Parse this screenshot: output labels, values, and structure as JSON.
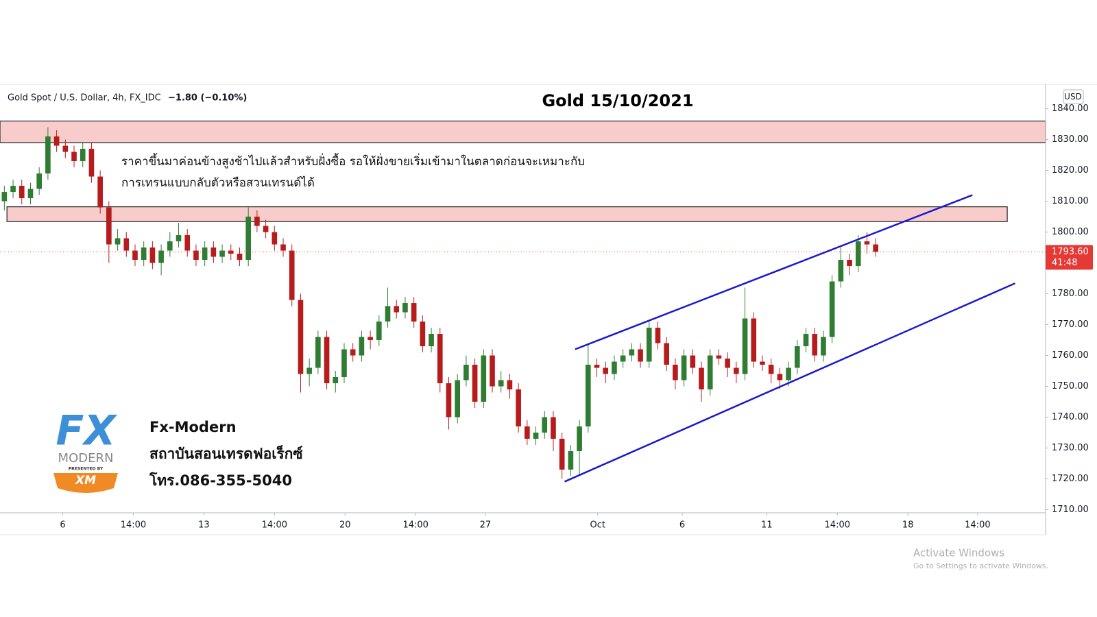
{
  "chart_data": {
    "type": "candlestick",
    "header": "Gold Spot / U.S. Dollar, 4h, FX_IDC",
    "change": "−1.80 (−0.10%)",
    "title": "Gold 15/10/2021",
    "annotation": [
      "ราคาขึ้นมาค่อนข้างสูงช้าไปแล้วสำหรับฝั่งซื้อ รอให้ฝั่งขายเริ่มเข้ามาในตลาดก่อนจะเหมาะกับ",
      "การเทรนแบบกลับตัวหรือสวนเทรนด์ได้"
    ],
    "y_unit": "USD",
    "up_color": "#2e7d32",
    "down_color": "#b71c1c",
    "xlim": [
      -0.5,
      119.5
    ],
    "ylim": [
      1709,
      1847.9
    ],
    "yticks": [
      {
        "value": 1710,
        "label": "1710.00"
      },
      {
        "value": 1720,
        "label": "1720.00"
      },
      {
        "value": 1730,
        "label": "1730.00"
      },
      {
        "value": 1740,
        "label": "1740.00"
      },
      {
        "value": 1750,
        "label": "1750.00"
      },
      {
        "value": 1760,
        "label": "1760.00"
      },
      {
        "value": 1770,
        "label": "1770.00"
      },
      {
        "value": 1780,
        "label": "1780.00"
      },
      {
        "value": 1790,
        "label": "1790.00"
      },
      {
        "value": 1800,
        "label": "1800.00"
      },
      {
        "value": 1810,
        "label": "1810.00"
      },
      {
        "value": 1820,
        "label": "1820.00"
      },
      {
        "value": 1830,
        "label": "1830.00"
      },
      {
        "value": 1840,
        "label": "1840.00"
      }
    ],
    "xticks": [
      {
        "value": 6.7,
        "label": "6"
      },
      {
        "value": 14.8,
        "label": "14:00"
      },
      {
        "value": 22.9,
        "label": "13"
      },
      {
        "value": 31,
        "label": "14:00"
      },
      {
        "value": 39.1,
        "label": "20"
      },
      {
        "value": 47.2,
        "label": "14:00"
      },
      {
        "value": 55.2,
        "label": "27"
      },
      {
        "value": 68.1,
        "label": "Oct"
      },
      {
        "value": 77.8,
        "label": "6"
      },
      {
        "value": 87.5,
        "label": "11"
      },
      {
        "value": 95.6,
        "label": "14:00"
      },
      {
        "value": 103.7,
        "label": "18"
      },
      {
        "value": 111.7,
        "label": "14:00"
      }
    ],
    "open": [
      1810,
      1813,
      1815,
      1811,
      1814,
      1819,
      1831,
      1828,
      1826,
      1823,
      1827,
      1818,
      1808,
      1796,
      1798,
      1794,
      1791,
      1795,
      1790,
      1794,
      1797,
      1799,
      1794,
      1791,
      1795,
      1792,
      1794,
      1793,
      1791,
      1805,
      1802,
      1800,
      1796,
      1794,
      1778,
      1754,
      1756,
      1766,
      1751,
      1753,
      1762,
      1760,
      1766,
      1765,
      1771,
      1776,
      1774,
      1777,
      1771,
      1763,
      1767,
      1751,
      1740,
      1752,
      1757,
      1745,
      1760,
      1750,
      1752,
      1749,
      1737,
      1733,
      1735,
      1740,
      1733,
      1723,
      1729,
      1737,
      1757,
      1756,
      1754,
      1758,
      1760,
      1762,
      1758,
      1769,
      1764,
      1757,
      1752,
      1760,
      1756,
      1749,
      1760,
      1759,
      1756,
      1754,
      1772,
      1758,
      1757,
      1754,
      1752,
      1756,
      1763,
      1767,
      1760,
      1766,
      1784,
      1791,
      1789,
      1797,
      1796
    ],
    "high": [
      1815,
      1817,
      1817,
      1816,
      1821,
      1834,
      1833,
      1830,
      1828,
      1829,
      1829,
      1820,
      1810,
      1801,
      1800,
      1796,
      1797,
      1797,
      1796,
      1800,
      1803,
      1801,
      1796,
      1797,
      1797,
      1796,
      1796,
      1795,
      1808,
      1807,
      1804,
      1802,
      1798,
      1796,
      1780,
      1759,
      1768,
      1768,
      1755,
      1764,
      1764,
      1768,
      1768,
      1773,
      1782,
      1778,
      1779,
      1779,
      1773,
      1769,
      1769,
      1753,
      1754,
      1760,
      1759,
      1762,
      1762,
      1755,
      1754,
      1751,
      1739,
      1737,
      1742,
      1742,
      1735,
      1731,
      1739,
      1764,
      1759,
      1758,
      1760,
      1762,
      1764,
      1764,
      1771,
      1771,
      1766,
      1759,
      1762,
      1762,
      1758,
      1762,
      1762,
      1761,
      1758,
      1782,
      1774,
      1760,
      1759,
      1756,
      1758,
      1765,
      1769,
      1769,
      1768,
      1786,
      1795,
      1793,
      1799,
      1800,
      1798
    ],
    "low": [
      1807,
      1811,
      1809,
      1809,
      1812,
      1817,
      1826,
      1824,
      1821,
      1821,
      1816,
      1806,
      1790,
      1794,
      1792,
      1789,
      1789,
      1788,
      1786,
      1792,
      1795,
      1792,
      1789,
      1789,
      1790,
      1790,
      1791,
      1789,
      1789,
      1800,
      1798,
      1794,
      1792,
      1776,
      1748,
      1750,
      1754,
      1749,
      1748,
      1751,
      1758,
      1758,
      1762,
      1763,
      1769,
      1772,
      1772,
      1769,
      1761,
      1761,
      1748,
      1736,
      1738,
      1750,
      1743,
      1743,
      1748,
      1748,
      1746,
      1735,
      1731,
      1731,
      1733,
      1729,
      1720,
      1721,
      1721,
      1735,
      1753,
      1751,
      1752,
      1756,
      1758,
      1756,
      1756,
      1762,
      1755,
      1749,
      1750,
      1754,
      1745,
      1747,
      1757,
      1753,
      1751,
      1752,
      1756,
      1755,
      1751,
      1749,
      1750,
      1754,
      1761,
      1758,
      1758,
      1764,
      1782,
      1786,
      1787,
      1793,
      1792
    ],
    "close": [
      1813,
      1815,
      1811,
      1814,
      1819,
      1831,
      1828,
      1826,
      1823,
      1827,
      1818,
      1808,
      1796,
      1798,
      1794,
      1791,
      1795,
      1790,
      1794,
      1797,
      1799,
      1794,
      1791,
      1795,
      1792,
      1794,
      1793,
      1791,
      1805,
      1802,
      1800,
      1796,
      1794,
      1778,
      1754,
      1756,
      1766,
      1751,
      1753,
      1762,
      1760,
      1766,
      1765,
      1771,
      1776,
      1774,
      1777,
      1771,
      1763,
      1767,
      1751,
      1740,
      1752,
      1757,
      1745,
      1760,
      1750,
      1752,
      1749,
      1737,
      1733,
      1735,
      1740,
      1733,
      1723,
      1729,
      1737,
      1757,
      1756,
      1754,
      1758,
      1760,
      1762,
      1758,
      1769,
      1764,
      1757,
      1752,
      1760,
      1756,
      1749,
      1760,
      1759,
      1756,
      1754,
      1772,
      1758,
      1757,
      1754,
      1752,
      1756,
      1763,
      1767,
      1760,
      1766,
      1784,
      1791,
      1789,
      1797,
      1796,
      1793.6
    ],
    "last_price": {
      "value": 1793.6,
      "label": "1793.60"
    },
    "countdown": "41:48",
    "zones": [
      {
        "x": [
          -0.5,
          119.5
        ],
        "from": 1829,
        "to": 1836
      },
      {
        "x": [
          0.3,
          115.1
        ],
        "from": 1803.4,
        "to": 1808.2
      }
    ],
    "trendlines": [
      {
        "x": [
          65.5,
          111.1
        ],
        "y": [
          1762,
          1812
        ],
        "color": "#1a1acc"
      },
      {
        "x": [
          64.3,
          116
        ],
        "y": [
          1719.1,
          1783.4
        ],
        "color": "#1a1acc"
      }
    ]
  },
  "logo": {
    "brand": "FX",
    "name": "MODERN",
    "presented": "PRESENTED BY",
    "partner": "XM",
    "lines": [
      "Fx-Modern",
      "สถาบันสอนเทรดฟอเร็กซ์",
      "โทร.086-355-5040"
    ]
  },
  "watermark": [
    "Activate Windows",
    "Go to Settings to activate Windows."
  ]
}
